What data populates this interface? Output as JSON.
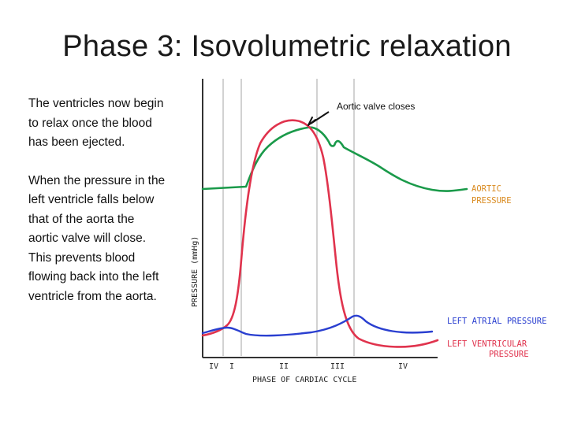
{
  "slide": {
    "title": "Phase 3: Isovolumetric relaxation",
    "paragraph_1": "The ventricles now begin to relax once the blood has been ejected.",
    "paragraph_2": "When the pressure in the left ventricle falls below that of the aorta the aortic valve will close. This prevents blood flowing back into the left ventricle from the aorta."
  },
  "diagram": {
    "annotation": "Aortic valve closes",
    "y_axis_label": "PRESSURE (mmHg)",
    "x_axis_label": "PHASE OF CARDIAC CYCLE",
    "phase_labels": [
      "IV",
      "I",
      "II",
      "III",
      "IV"
    ],
    "curve_labels": {
      "aortic_1": "AORTIC",
      "aortic_2": "PRESSURE",
      "atrial": "LEFT ATRIAL PRESSURE",
      "ventricular_1": "LEFT VENTRICULAR",
      "ventricular_2": "PRESSURE"
    },
    "colors": {
      "aortic": "#1a9a4a",
      "ventricular": "#e0334d",
      "atrial": "#2a3fd0",
      "axis": "#333333",
      "divider": "#b5b5b5",
      "aortic_label": "#d98a1f",
      "atrial_label": "#2a3fd0",
      "ventricular_label": "#e0334d"
    }
  }
}
